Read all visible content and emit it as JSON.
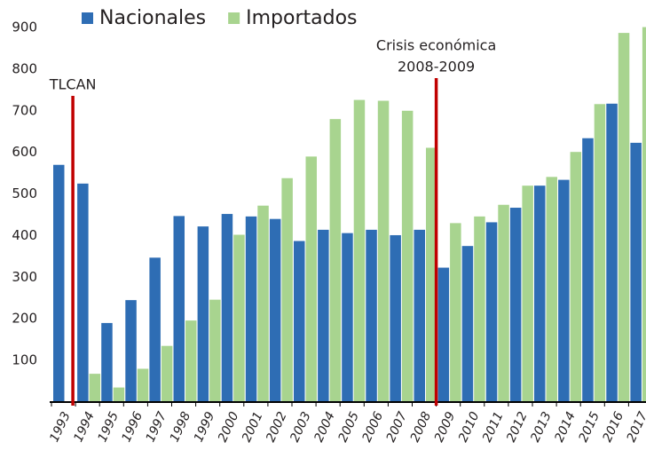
{
  "chart_data": {
    "type": "bar",
    "categories": [
      "1993",
      "1994",
      "1995",
      "1996",
      "1997",
      "1998",
      "1999",
      "2000",
      "2001",
      "2002",
      "2003",
      "2004",
      "2005",
      "2006",
      "2007",
      "2008",
      "2009",
      "2010",
      "2011",
      "2012",
      "2013",
      "2014",
      "2015",
      "2016",
      "2017"
    ],
    "series": [
      {
        "name": "Nacionales",
        "color": "#2e6db4",
        "values": [
          570,
          525,
          190,
          245,
          347,
          447,
          422,
          452,
          446,
          440,
          387,
          414,
          406,
          414,
          401,
          414,
          323,
          375,
          432,
          467,
          520,
          534,
          634,
          717,
          623
        ]
      },
      {
        "name": "Importados",
        "color": "#a8d48f",
        "values": [
          null,
          68,
          35,
          80,
          135,
          196,
          246,
          402,
          472,
          538,
          590,
          680,
          726,
          724,
          700,
          611,
          430,
          446,
          474,
          520,
          541,
          601,
          716,
          887,
          901
        ]
      }
    ],
    "ylim": [
      0,
      900
    ],
    "yticks": [
      100,
      200,
      300,
      400,
      500,
      600,
      700,
      800,
      900
    ],
    "annotations": [
      {
        "text": [
          "TLCAN"
        ],
        "color": "#c00000"
      },
      {
        "text": [
          "Crisis económica",
          "2008-2009"
        ],
        "color": "#c00000"
      }
    ]
  }
}
